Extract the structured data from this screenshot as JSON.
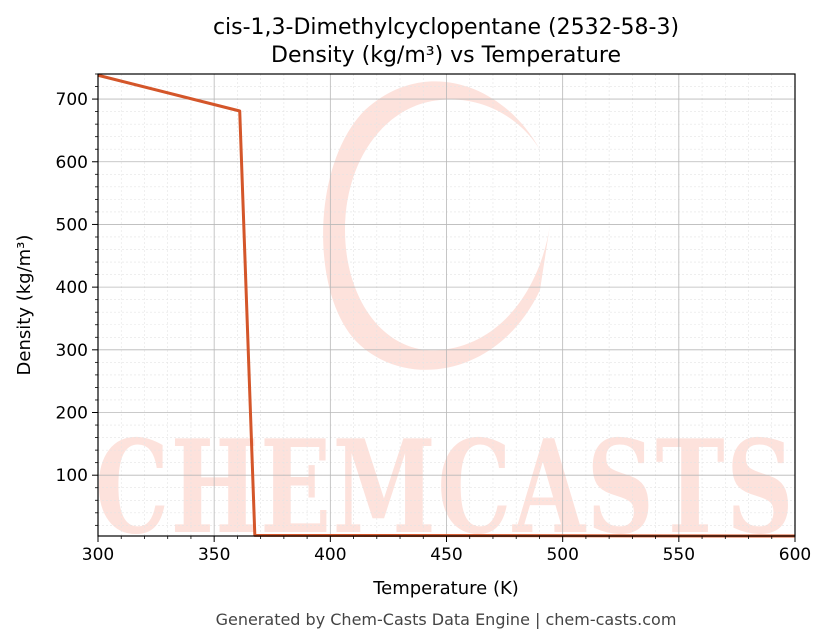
{
  "chart_data": {
    "type": "line",
    "title_line1": "cis-1,3-Dimethylcyclopentane (2532-58-3)",
    "title_line2": "Density (kg/m³) vs Temperature",
    "xlabel": "Temperature (K)",
    "ylabel": "Density (kg/m³)",
    "xlim": [
      300,
      600
    ],
    "ylim": [
      3,
      740
    ],
    "x_ticks": [
      300,
      350,
      400,
      450,
      500,
      550,
      600
    ],
    "y_ticks": [
      100,
      200,
      300,
      400,
      500,
      600,
      700
    ],
    "grid": true,
    "series": [
      {
        "color": "#d4562a",
        "x": [
          300,
          361,
          367.5,
          600
        ],
        "y": [
          738,
          681,
          4,
          3
        ]
      }
    ]
  },
  "footer": "Generated by Chem-Casts Data Engine | chem-casts.com",
  "watermark": "CHEMCASTS"
}
